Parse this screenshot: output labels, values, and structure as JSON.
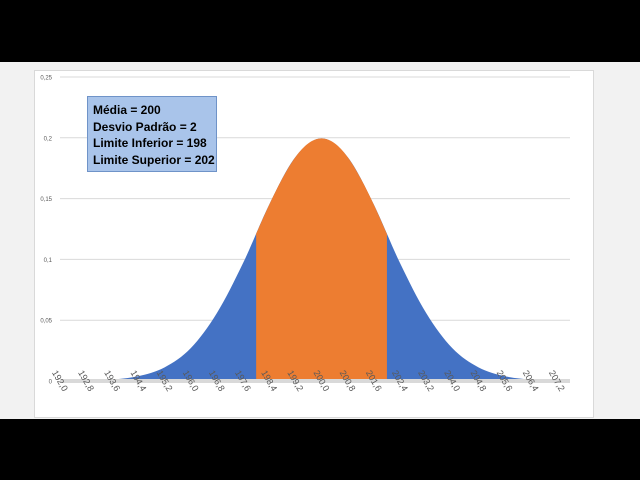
{
  "chart_data": {
    "type": "area",
    "title": "",
    "xlabel": "",
    "ylabel": "",
    "x_ticks": [
      "192,0",
      "192,8",
      "193,6",
      "194,4",
      "195,2",
      "196,0",
      "196,8",
      "197,6",
      "198,4",
      "199,2",
      "200,0",
      "200,8",
      "201,6",
      "202,4",
      "203,2",
      "204,0",
      "204,8",
      "205,6",
      "206,4",
      "207,2"
    ],
    "y_ticks": [
      "0",
      "0,05",
      "0,1",
      "0,15",
      "0,2",
      "0,25"
    ],
    "xlim": [
      192.0,
      207.6
    ],
    "ylim": [
      0,
      0.25
    ],
    "grid": true,
    "series": [
      {
        "color": "#4472c4",
        "x": [
          192.0,
          192.8,
          193.6,
          194.4,
          195.2,
          196.0,
          196.8,
          197.6,
          198.4,
          199.2,
          200.0,
          200.8,
          201.6,
          202.4,
          203.2,
          204.0,
          204.8,
          205.6,
          206.4,
          207.2,
          207.6
        ],
        "values": [
          0.0001,
          0.0003,
          0.0012,
          0.004,
          0.0112,
          0.027,
          0.0559,
          0.097,
          0.145,
          0.1841,
          0.1995,
          0.1841,
          0.145,
          0.097,
          0.0559,
          0.027,
          0.0112,
          0.004,
          0.0012,
          0.0003,
          0.0002
        ]
      },
      {
        "color": "#ed7d31",
        "x": [
          198.0,
          198.4,
          198.8,
          199.2,
          199.6,
          200.0,
          200.4,
          200.8,
          201.2,
          201.6,
          202.0
        ],
        "values": [
          0.121,
          0.145,
          0.1665,
          0.1841,
          0.1955,
          0.1995,
          0.1955,
          0.1841,
          0.1665,
          0.145,
          0.121
        ]
      }
    ]
  },
  "info_box": {
    "mean": "Média = 200",
    "std_dev": "Desvio Padrão = 2",
    "lower_limit": "Limite Inferior = 198",
    "upper_limit": "Limite Superior = 202"
  }
}
